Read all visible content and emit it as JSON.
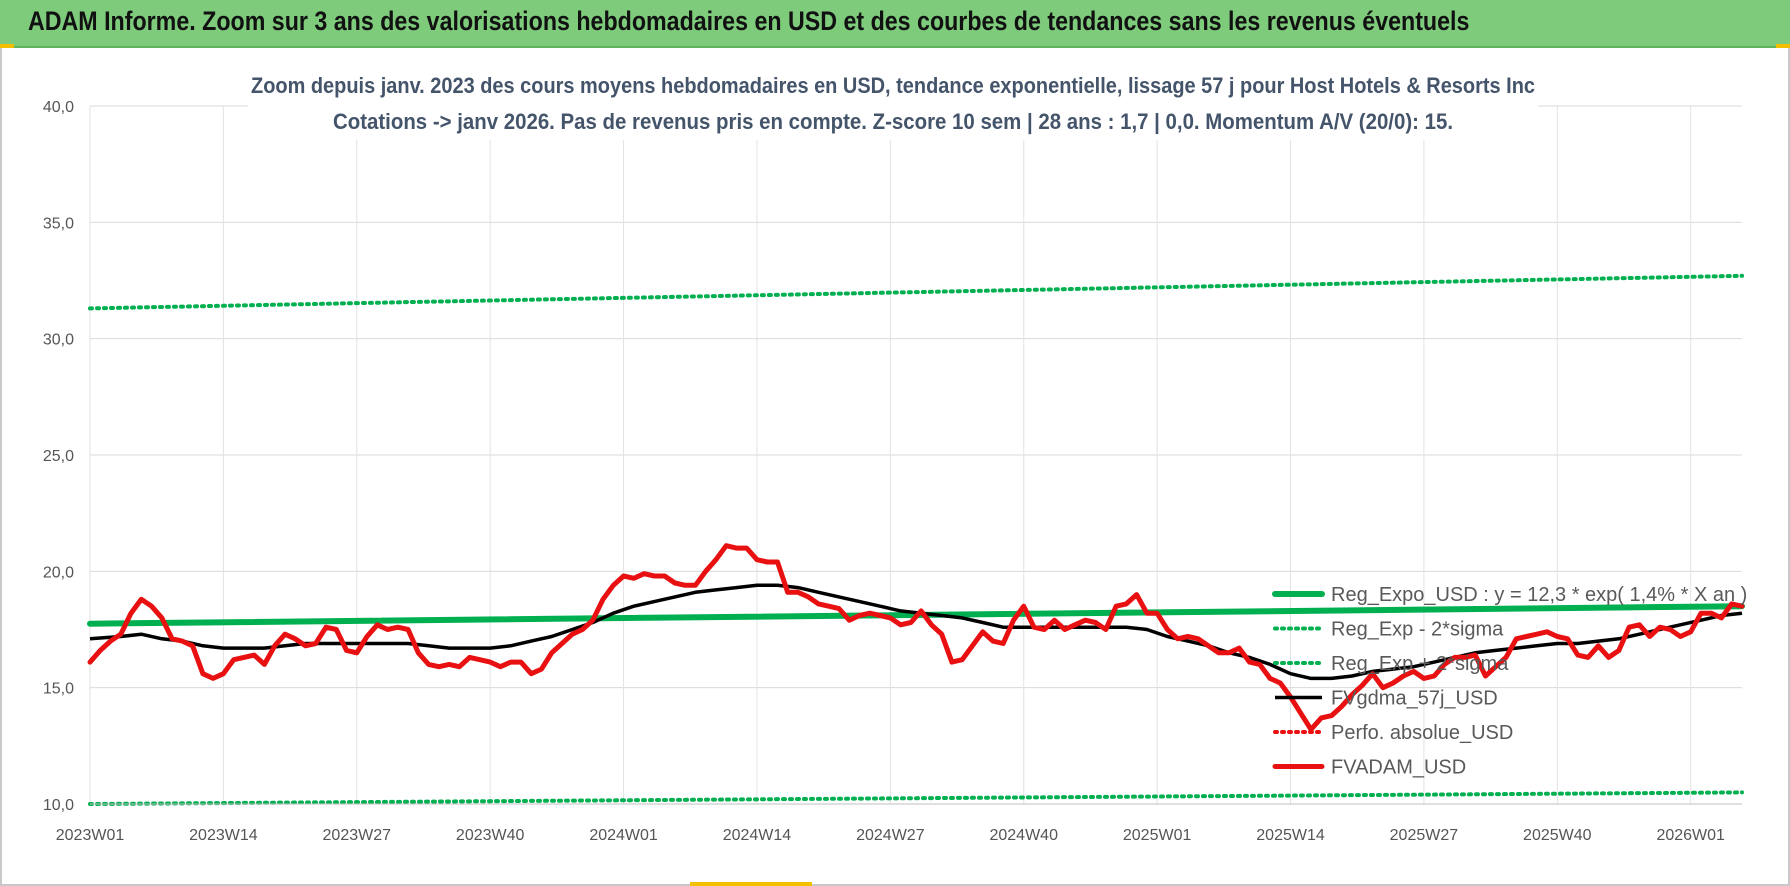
{
  "banner": {
    "title": "ADAM Informe. Zoom sur 3 ans des valorisations hebdomadaires en USD et des courbes de tendances sans les revenus éventuels"
  },
  "colors": {
    "banner_bg": "#7ecb7c",
    "green": "#00b050",
    "red": "#e81010",
    "black": "#000000",
    "accent": "#f2c000"
  },
  "chart_data": {
    "type": "line",
    "title": "Zoom depuis janv. 2023 des cours moyens hebdomadaires en USD, tendance exponentielle, lissage 57 j pour Host Hotels & Resorts Inc",
    "subtitle": "Cotations -> janv 2026. Pas de revenus pris en compte. Z-score 10 sem  | 28 ans : 1,7 | 0,0. Momentum A/V (20/0): 15.",
    "xlabel": "",
    "ylabel": "",
    "ylim": [
      10,
      40
    ],
    "yticks": [
      "10,0",
      "15,0",
      "20,0",
      "25,0",
      "30,0",
      "35,0",
      "40,0"
    ],
    "xlim": [
      0,
      161
    ],
    "xticks": [
      {
        "i": 0,
        "label": "2023W01"
      },
      {
        "i": 13,
        "label": "2023W14"
      },
      {
        "i": 26,
        "label": "2023W27"
      },
      {
        "i": 39,
        "label": "2023W40"
      },
      {
        "i": 52,
        "label": "2024W01"
      },
      {
        "i": 65,
        "label": "2024W14"
      },
      {
        "i": 78,
        "label": "2024W27"
      },
      {
        "i": 91,
        "label": "2024W40"
      },
      {
        "i": 104,
        "label": "2025W01"
      },
      {
        "i": 117,
        "label": "2025W14"
      },
      {
        "i": 130,
        "label": "2025W27"
      },
      {
        "i": 143,
        "label": "2025W40"
      },
      {
        "i": 156,
        "label": "2026W01"
      }
    ],
    "grid": true,
    "legend_position": "bottom-right",
    "series": [
      {
        "key": "reg",
        "name": "Reg_Expo_USD : y = 12,3 * exp( 1,4% *  X  an )",
        "color": "#00b050",
        "style": "thick",
        "points": [
          [
            0,
            17.75
          ],
          [
            161,
            18.5
          ]
        ]
      },
      {
        "key": "m2",
        "name": "Reg_Exp - 2*sigma",
        "color": "#00b050",
        "style": "dotted",
        "points": [
          [
            0,
            10.0
          ],
          [
            161,
            10.5
          ]
        ]
      },
      {
        "key": "p2",
        "name": "Reg_Exp + 2*sigma",
        "color": "#00b050",
        "style": "dotted",
        "points": [
          [
            0,
            31.3
          ],
          [
            161,
            32.7
          ]
        ]
      },
      {
        "key": "mma",
        "name": "FVgdma_57j_USD",
        "color": "#000000",
        "style": "solid",
        "points": [
          [
            0,
            17.1
          ],
          [
            3,
            17.2
          ],
          [
            5,
            17.3
          ],
          [
            7,
            17.1
          ],
          [
            9,
            17.0
          ],
          [
            11,
            16.8
          ],
          [
            13,
            16.7
          ],
          [
            15,
            16.7
          ],
          [
            17,
            16.7
          ],
          [
            19,
            16.8
          ],
          [
            21,
            16.9
          ],
          [
            23,
            16.9
          ],
          [
            25,
            16.9
          ],
          [
            27,
            16.9
          ],
          [
            29,
            16.9
          ],
          [
            31,
            16.9
          ],
          [
            33,
            16.8
          ],
          [
            35,
            16.7
          ],
          [
            37,
            16.7
          ],
          [
            39,
            16.7
          ],
          [
            41,
            16.8
          ],
          [
            43,
            17.0
          ],
          [
            45,
            17.2
          ],
          [
            47,
            17.5
          ],
          [
            49,
            17.8
          ],
          [
            51,
            18.2
          ],
          [
            53,
            18.5
          ],
          [
            55,
            18.7
          ],
          [
            57,
            18.9
          ],
          [
            59,
            19.1
          ],
          [
            61,
            19.2
          ],
          [
            63,
            19.3
          ],
          [
            65,
            19.4
          ],
          [
            67,
            19.4
          ],
          [
            69,
            19.3
          ],
          [
            71,
            19.1
          ],
          [
            73,
            18.9
          ],
          [
            75,
            18.7
          ],
          [
            77,
            18.5
          ],
          [
            79,
            18.3
          ],
          [
            81,
            18.2
          ],
          [
            83,
            18.1
          ],
          [
            85,
            18.0
          ],
          [
            87,
            17.8
          ],
          [
            89,
            17.6
          ],
          [
            91,
            17.6
          ],
          [
            93,
            17.6
          ],
          [
            95,
            17.6
          ],
          [
            97,
            17.6
          ],
          [
            99,
            17.6
          ],
          [
            101,
            17.6
          ],
          [
            103,
            17.5
          ],
          [
            105,
            17.2
          ],
          [
            107,
            17.0
          ],
          [
            109,
            16.8
          ],
          [
            111,
            16.5
          ],
          [
            113,
            16.3
          ],
          [
            115,
            16.0
          ],
          [
            117,
            15.6
          ],
          [
            119,
            15.4
          ],
          [
            121,
            15.4
          ],
          [
            123,
            15.5
          ],
          [
            125,
            15.7
          ],
          [
            127,
            15.8
          ],
          [
            129,
            15.9
          ],
          [
            131,
            16.1
          ],
          [
            133,
            16.3
          ],
          [
            135,
            16.5
          ],
          [
            137,
            16.6
          ],
          [
            139,
            16.7
          ],
          [
            141,
            16.8
          ],
          [
            143,
            16.9
          ],
          [
            145,
            16.9
          ],
          [
            147,
            17.0
          ],
          [
            149,
            17.1
          ],
          [
            151,
            17.3
          ],
          [
            153,
            17.5
          ],
          [
            155,
            17.7
          ],
          [
            157,
            17.9
          ],
          [
            159,
            18.1
          ],
          [
            161,
            18.2
          ]
        ]
      },
      {
        "key": "perf",
        "name": "Perfo. absolue_USD",
        "color": "#e81010",
        "style": "dotted",
        "points": []
      },
      {
        "key": "fv",
        "name": "FVADAM_USD",
        "color": "#e81010",
        "style": "thick",
        "points": [
          [
            0,
            16.1
          ],
          [
            1,
            16.6
          ],
          [
            2,
            17.0
          ],
          [
            3,
            17.3
          ],
          [
            4,
            18.2
          ],
          [
            5,
            18.8
          ],
          [
            6,
            18.5
          ],
          [
            7,
            18.0
          ],
          [
            8,
            17.1
          ],
          [
            9,
            17.0
          ],
          [
            10,
            16.8
          ],
          [
            11,
            15.6
          ],
          [
            12,
            15.4
          ],
          [
            13,
            15.6
          ],
          [
            14,
            16.2
          ],
          [
            15,
            16.3
          ],
          [
            16,
            16.4
          ],
          [
            17,
            16.0
          ],
          [
            18,
            16.8
          ],
          [
            19,
            17.3
          ],
          [
            20,
            17.1
          ],
          [
            21,
            16.8
          ],
          [
            22,
            16.9
          ],
          [
            23,
            17.6
          ],
          [
            24,
            17.5
          ],
          [
            25,
            16.6
          ],
          [
            26,
            16.5
          ],
          [
            27,
            17.2
          ],
          [
            28,
            17.7
          ],
          [
            29,
            17.5
          ],
          [
            30,
            17.6
          ],
          [
            31,
            17.5
          ],
          [
            32,
            16.5
          ],
          [
            33,
            16.0
          ],
          [
            34,
            15.9
          ],
          [
            35,
            16.0
          ],
          [
            36,
            15.9
          ],
          [
            37,
            16.3
          ],
          [
            38,
            16.2
          ],
          [
            39,
            16.1
          ],
          [
            40,
            15.9
          ],
          [
            41,
            16.1
          ],
          [
            42,
            16.1
          ],
          [
            43,
            15.6
          ],
          [
            44,
            15.8
          ],
          [
            45,
            16.5
          ],
          [
            46,
            16.9
          ],
          [
            47,
            17.3
          ],
          [
            48,
            17.5
          ],
          [
            49,
            17.9
          ],
          [
            50,
            18.8
          ],
          [
            51,
            19.4
          ],
          [
            52,
            19.8
          ],
          [
            53,
            19.7
          ],
          [
            54,
            19.9
          ],
          [
            55,
            19.8
          ],
          [
            56,
            19.8
          ],
          [
            57,
            19.5
          ],
          [
            58,
            19.4
          ],
          [
            59,
            19.4
          ],
          [
            60,
            20.0
          ],
          [
            61,
            20.5
          ],
          [
            62,
            21.1
          ],
          [
            63,
            21.0
          ],
          [
            64,
            21.0
          ],
          [
            65,
            20.5
          ],
          [
            66,
            20.4
          ],
          [
            67,
            20.4
          ],
          [
            68,
            19.1
          ],
          [
            69,
            19.1
          ],
          [
            70,
            18.9
          ],
          [
            71,
            18.6
          ],
          [
            72,
            18.5
          ],
          [
            73,
            18.4
          ],
          [
            74,
            17.9
          ],
          [
            75,
            18.1
          ],
          [
            76,
            18.2
          ],
          [
            77,
            18.1
          ],
          [
            78,
            18.0
          ],
          [
            79,
            17.7
          ],
          [
            80,
            17.8
          ],
          [
            81,
            18.3
          ],
          [
            82,
            17.7
          ],
          [
            83,
            17.3
          ],
          [
            84,
            16.1
          ],
          [
            85,
            16.2
          ],
          [
            86,
            16.8
          ],
          [
            87,
            17.4
          ],
          [
            88,
            17.0
          ],
          [
            89,
            16.9
          ],
          [
            90,
            17.9
          ],
          [
            91,
            18.5
          ],
          [
            92,
            17.6
          ],
          [
            93,
            17.5
          ],
          [
            94,
            17.9
          ],
          [
            95,
            17.5
          ],
          [
            96,
            17.7
          ],
          [
            97,
            17.9
          ],
          [
            98,
            17.8
          ],
          [
            99,
            17.5
          ],
          [
            100,
            18.5
          ],
          [
            101,
            18.6
          ],
          [
            102,
            19.0
          ],
          [
            103,
            18.2
          ],
          [
            104,
            18.2
          ],
          [
            105,
            17.5
          ],
          [
            106,
            17.1
          ],
          [
            107,
            17.2
          ],
          [
            108,
            17.1
          ],
          [
            109,
            16.8
          ],
          [
            110,
            16.5
          ],
          [
            111,
            16.5
          ],
          [
            112,
            16.7
          ],
          [
            113,
            16.1
          ],
          [
            114,
            16.0
          ],
          [
            115,
            15.4
          ],
          [
            116,
            15.2
          ],
          [
            117,
            14.6
          ],
          [
            118,
            13.9
          ],
          [
            119,
            13.2
          ],
          [
            120,
            13.7
          ],
          [
            121,
            13.8
          ],
          [
            122,
            14.2
          ],
          [
            123,
            14.7
          ],
          [
            124,
            15.1
          ],
          [
            125,
            15.6
          ],
          [
            126,
            15.0
          ],
          [
            127,
            15.2
          ],
          [
            128,
            15.5
          ],
          [
            129,
            15.7
          ],
          [
            130,
            15.4
          ],
          [
            131,
            15.5
          ],
          [
            132,
            16.0
          ],
          [
            133,
            16.3
          ],
          [
            134,
            16.3
          ],
          [
            135,
            16.4
          ],
          [
            136,
            15.5
          ],
          [
            137,
            15.9
          ],
          [
            138,
            16.3
          ],
          [
            139,
            17.1
          ],
          [
            140,
            17.2
          ],
          [
            141,
            17.3
          ],
          [
            142,
            17.4
          ],
          [
            143,
            17.2
          ],
          [
            144,
            17.1
          ],
          [
            145,
            16.4
          ],
          [
            146,
            16.3
          ],
          [
            147,
            16.8
          ],
          [
            148,
            16.3
          ],
          [
            149,
            16.6
          ],
          [
            150,
            17.6
          ],
          [
            151,
            17.7
          ],
          [
            152,
            17.2
          ],
          [
            153,
            17.6
          ],
          [
            154,
            17.5
          ],
          [
            155,
            17.2
          ],
          [
            156,
            17.4
          ],
          [
            157,
            18.2
          ],
          [
            158,
            18.2
          ],
          [
            159,
            18.0
          ],
          [
            160,
            18.6
          ],
          [
            161,
            18.5
          ]
        ]
      }
    ]
  }
}
